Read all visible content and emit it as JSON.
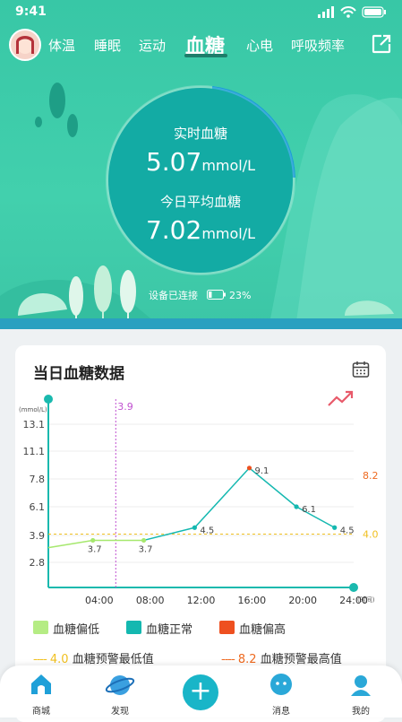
{
  "status": {
    "time": "9:41"
  },
  "tabs": [
    {
      "label": "体温"
    },
    {
      "label": "睡眠"
    },
    {
      "label": "运动"
    },
    {
      "label": "血糖"
    },
    {
      "label": "心电"
    },
    {
      "label": "呼吸频率"
    }
  ],
  "realtime": {
    "label": "实时血糖",
    "value": "5.07",
    "unit": "mmol/L"
  },
  "average": {
    "label": "今日平均血糖",
    "value": "7.02",
    "unit": "mmol/L"
  },
  "device": {
    "status": "设备已连接",
    "battery": "23%",
    "battery_level": 0.23
  },
  "card": {
    "title": "当日血糖数据"
  },
  "chart_data": {
    "type": "line",
    "ylabel": "(mmol/L)",
    "xlabel": "(时间)",
    "yticks": [
      "13.1",
      "11.1",
      "7.8",
      "6.1",
      "3.9",
      "2.8"
    ],
    "ytick_values": [
      13.1,
      11.1,
      7.8,
      6.1,
      3.9,
      2.8
    ],
    "xticks": [
      "04:00",
      "08:00",
      "12:00",
      "16:00",
      "20:00",
      "24:00"
    ],
    "xtick_hours": [
      4,
      8,
      12,
      16,
      20,
      24
    ],
    "cursor": {
      "label": "3.9",
      "hour": 5.3
    },
    "series": [
      {
        "points": [
          {
            "hour": 0,
            "value": 3.4,
            "label": ""
          },
          {
            "hour": 3.5,
            "value": 3.7,
            "label": "3.7"
          },
          {
            "hour": 7.5,
            "value": 3.7,
            "label": "3.7"
          },
          {
            "hour": 11.5,
            "value": 4.5,
            "label": "4.5"
          },
          {
            "hour": 15.8,
            "value": 9.1,
            "label": "9.1"
          },
          {
            "hour": 19.5,
            "value": 6.1,
            "label": "6.1"
          },
          {
            "hour": 22.5,
            "value": 4.5,
            "label": "4.5"
          }
        ]
      }
    ],
    "thresholds": {
      "low": 4.0,
      "low_label": "4.0",
      "high": 8.2,
      "high_label": "8.2"
    },
    "colors": {
      "low": "#a6e86e",
      "normal": "#14b8b0",
      "high": "#ee5020",
      "low_line": "#f0c020",
      "high_line": "#ee6a20"
    }
  },
  "legend": [
    {
      "label": "血糖偏低",
      "color": "#b5ec84"
    },
    {
      "label": "血糖正常",
      "color": "#14b8b0"
    },
    {
      "label": "血糖偏高",
      "color": "#ee5020"
    }
  ],
  "threshold_legend": {
    "low_value": "4.0",
    "low_label": "血糖预警最低值",
    "high_value": "8.2",
    "high_label": "血糖预警最高值"
  },
  "nav": [
    {
      "label": "商城"
    },
    {
      "label": "发现"
    },
    {
      "label": "消息"
    },
    {
      "label": "我的"
    }
  ]
}
